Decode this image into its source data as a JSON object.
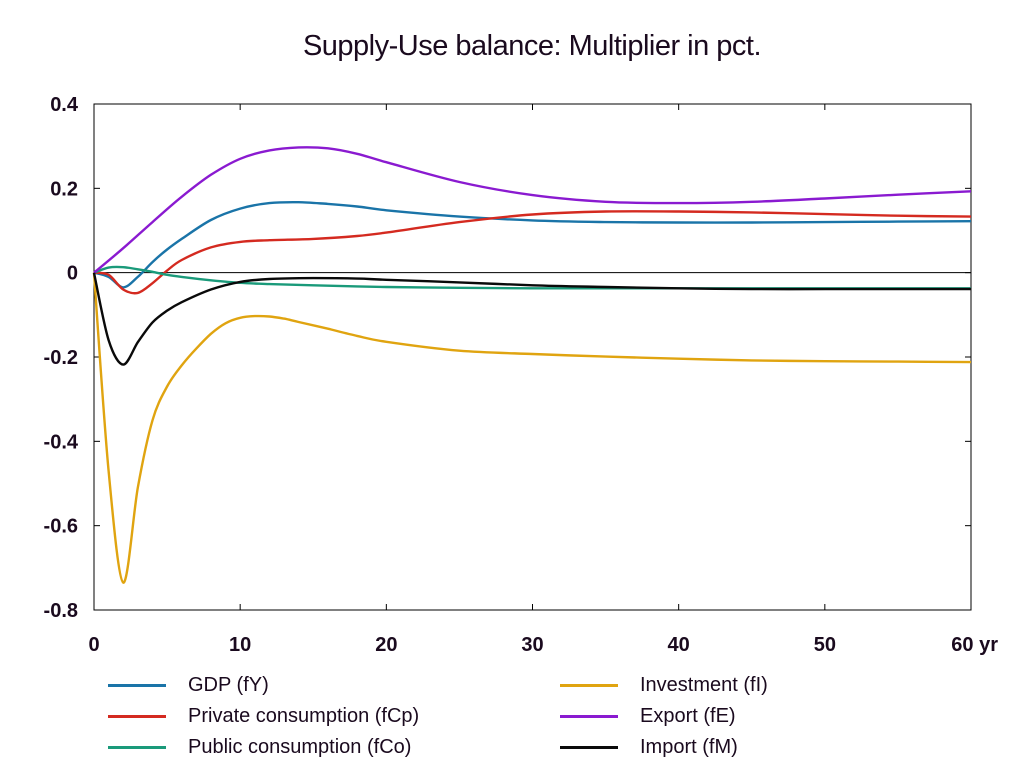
{
  "chart_data": {
    "type": "line",
    "title": "Supply-Use balance: Multiplier in pct.",
    "xlabel": "",
    "ylabel": "",
    "xlim": [
      0,
      60
    ],
    "ylim": [
      -0.8,
      0.4
    ],
    "x_ticks": [
      0,
      10,
      20,
      30,
      40,
      50,
      60
    ],
    "x_tick_labels": [
      "0",
      "10",
      "20",
      "30",
      "40",
      "50",
      "60 yr"
    ],
    "y_ticks": [
      -0.8,
      -0.6,
      -0.4,
      -0.2,
      0,
      0.2,
      0.4
    ],
    "y_tick_labels": [
      "-0.8",
      "-0.6",
      "-0.4",
      "-0.2",
      "0",
      "0.2",
      "0.4"
    ],
    "grid": false,
    "zero_line": true,
    "legend_position": "bottom",
    "series": [
      {
        "name": "GDP (fY)",
        "color": "#1a74a8",
        "x": [
          0,
          1,
          2,
          3,
          4,
          5,
          6,
          8,
          10,
          12,
          14,
          16,
          18,
          20,
          25,
          30,
          35,
          40,
          45,
          50,
          55,
          60
        ],
        "values": [
          0,
          -0.01,
          -0.035,
          -0.01,
          0.025,
          0.055,
          0.08,
          0.125,
          0.152,
          0.165,
          0.167,
          0.163,
          0.157,
          0.148,
          0.133,
          0.124,
          0.12,
          0.119,
          0.119,
          0.12,
          0.121,
          0.122
        ]
      },
      {
        "name": "Private consumption (fCp)",
        "color": "#d42a20",
        "x": [
          0,
          1,
          2,
          3,
          4,
          5,
          6,
          8,
          10,
          12,
          15,
          18,
          20,
          25,
          30,
          35,
          40,
          45,
          50,
          55,
          60
        ],
        "values": [
          0,
          -0.005,
          -0.04,
          -0.048,
          -0.025,
          0.005,
          0.03,
          0.06,
          0.073,
          0.077,
          0.08,
          0.087,
          0.095,
          0.12,
          0.138,
          0.145,
          0.145,
          0.143,
          0.139,
          0.135,
          0.133
        ]
      },
      {
        "name": "Public consumption (fCo)",
        "color": "#1a9a7a",
        "x": [
          0,
          1,
          2,
          3,
          4,
          5,
          6,
          8,
          10,
          12,
          15,
          20,
          25,
          30,
          35,
          40,
          45,
          50,
          55,
          60
        ],
        "values": [
          0,
          0.012,
          0.013,
          0.008,
          0.002,
          -0.005,
          -0.01,
          -0.018,
          -0.024,
          -0.027,
          -0.03,
          -0.034,
          -0.036,
          -0.037,
          -0.037,
          -0.037,
          -0.037,
          -0.037,
          -0.037,
          -0.037
        ]
      },
      {
        "name": "Investment (fI)",
        "color": "#e0a410",
        "x": [
          0,
          1,
          2,
          3,
          4,
          5,
          6,
          7,
          8,
          9,
          10,
          11,
          12,
          13,
          14,
          16,
          18,
          20,
          25,
          30,
          35,
          40,
          45,
          50,
          55,
          60
        ],
        "values": [
          0,
          -0.47,
          -0.735,
          -0.51,
          -0.35,
          -0.27,
          -0.22,
          -0.18,
          -0.145,
          -0.12,
          -0.107,
          -0.103,
          -0.104,
          -0.109,
          -0.117,
          -0.133,
          -0.15,
          -0.164,
          -0.185,
          -0.193,
          -0.199,
          -0.204,
          -0.208,
          -0.21,
          -0.211,
          -0.212
        ]
      },
      {
        "name": "Export (fE)",
        "color": "#8a1ad0",
        "x": [
          0,
          2,
          4,
          6,
          8,
          10,
          12,
          14,
          16,
          18,
          20,
          25,
          30,
          35,
          40,
          45,
          50,
          55,
          60
        ],
        "values": [
          0,
          0.058,
          0.12,
          0.18,
          0.232,
          0.27,
          0.29,
          0.297,
          0.295,
          0.282,
          0.262,
          0.215,
          0.184,
          0.168,
          0.165,
          0.168,
          0.176,
          0.185,
          0.193
        ]
      },
      {
        "name": "Import (fM)",
        "color": "#0a0a0a",
        "x": [
          0,
          1,
          2,
          3,
          4,
          5,
          6,
          8,
          10,
          12,
          15,
          18,
          20,
          25,
          30,
          35,
          40,
          45,
          50,
          55,
          60
        ],
        "values": [
          0,
          -0.16,
          -0.218,
          -0.165,
          -0.118,
          -0.09,
          -0.07,
          -0.04,
          -0.022,
          -0.015,
          -0.013,
          -0.014,
          -0.017,
          -0.023,
          -0.03,
          -0.034,
          -0.037,
          -0.039,
          -0.039,
          -0.039,
          -0.039
        ]
      }
    ]
  }
}
